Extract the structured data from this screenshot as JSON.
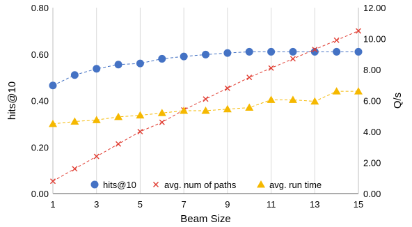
{
  "chart_data": {
    "type": "line",
    "xlabel": "Beam Size",
    "ylabel_left": "hits@10",
    "ylabel_right": "Q/s",
    "x": [
      1,
      2,
      3,
      4,
      5,
      6,
      7,
      8,
      9,
      10,
      11,
      12,
      13,
      14,
      15
    ],
    "x_ticks": [
      "1",
      "3",
      "5",
      "7",
      "9",
      "11",
      "13",
      "15"
    ],
    "xlim": [
      1,
      15
    ],
    "y_left_lim": [
      0,
      0.8
    ],
    "y_left_ticks": [
      "0.00",
      "0.20",
      "0.40",
      "0.60",
      "0.80"
    ],
    "y_right_lim": [
      0,
      12
    ],
    "y_right_ticks": [
      "0.00",
      "2.00",
      "4.00",
      "6.00",
      "8.00",
      "10.00",
      "12.00"
    ],
    "grid": "vertical",
    "legend_position": "bottom-center",
    "series": [
      {
        "name": "hits@10",
        "axis": "left",
        "marker": "circle",
        "color": "#4472C4",
        "values": [
          0.465,
          0.51,
          0.537,
          0.555,
          0.56,
          0.58,
          0.59,
          0.598,
          0.605,
          0.61,
          0.61,
          0.61,
          0.61,
          0.61,
          0.61
        ]
      },
      {
        "name": "avg. num of paths",
        "axis": "right",
        "marker": "x",
        "color": "#E03C31",
        "values": [
          0.8,
          1.6,
          2.4,
          3.2,
          4.0,
          4.6,
          5.4,
          6.1,
          6.8,
          7.5,
          8.1,
          8.7,
          9.3,
          9.9,
          10.5
        ]
      },
      {
        "name": "avg. run time",
        "axis": "right",
        "marker": "triangle",
        "color": "#F5B800",
        "values": [
          4.5,
          4.65,
          4.75,
          4.95,
          5.05,
          5.2,
          5.35,
          5.35,
          5.45,
          5.55,
          6.05,
          6.05,
          5.95,
          6.6,
          6.6
        ]
      }
    ]
  }
}
